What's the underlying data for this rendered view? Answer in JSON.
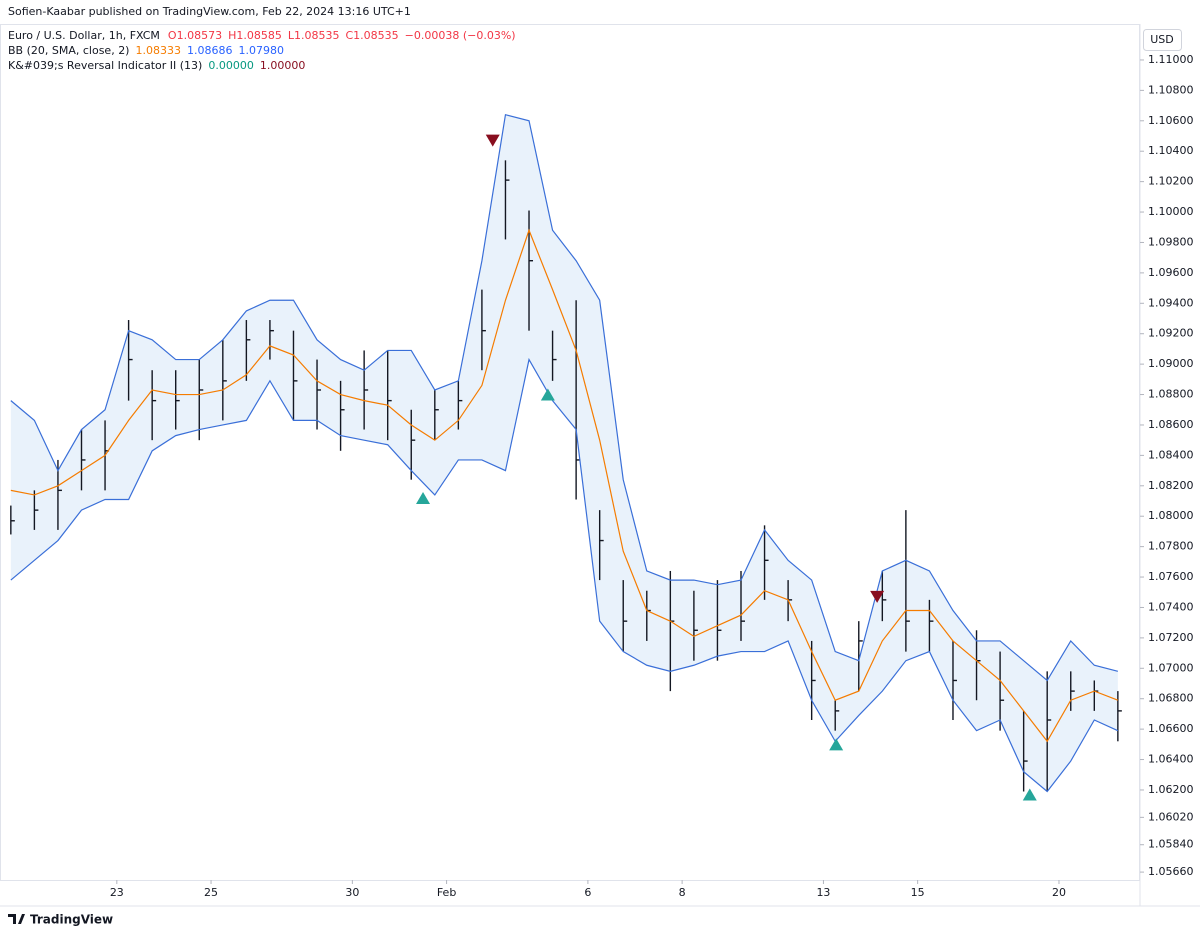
{
  "chart_data": {
    "type": "ohlc",
    "publisher": "Sofien-Kaabar published on TradingView.com, Feb 22, 2024 13:16 UTC+1",
    "symbol": "Euro / U.S. Dollar, 1h, FXCM",
    "quote": [
      "O1.08573",
      "H1.08585",
      "L1.08535",
      "C1.08535",
      "−0.00038 (−0.03%)"
    ],
    "quote_color": "#f23645",
    "indicators": [
      {
        "label": "BB (20, SMA, close, 2)",
        "values": [
          "1.08333",
          "1.08686",
          "1.07980"
        ],
        "colors": [
          "#f57c00",
          "#2962ff",
          "#2962ff"
        ]
      },
      {
        "label": "K&#039;s Reversal Indicator II (13)",
        "values": [
          "0.00000",
          "1.00000"
        ],
        "colors": [
          "#089981",
          "#880e1f"
        ]
      }
    ],
    "currency": "USD",
    "brand": "TradingView",
    "xlim": [
      -2.48,
      21.72
    ],
    "xticks": [
      {
        "value": 0,
        "label": "23"
      },
      {
        "value": 2,
        "label": "25"
      },
      {
        "value": 5,
        "label": "30"
      },
      {
        "value": 7,
        "label": "Feb"
      },
      {
        "value": 10,
        "label": "6"
      },
      {
        "value": 12,
        "label": "8"
      },
      {
        "value": 15,
        "label": "13"
      },
      {
        "value": 17,
        "label": "15"
      },
      {
        "value": 20,
        "label": "20"
      }
    ],
    "ylim": [
      1.05608,
      1.11197
    ],
    "yticks": [
      {
        "value": 1.0566,
        "label": "1.05660"
      },
      {
        "value": 1.0584,
        "label": "1.05840"
      },
      {
        "value": 1.0602,
        "label": "1.06020"
      },
      {
        "value": 1.062,
        "label": "1.06200"
      },
      {
        "value": 1.064,
        "label": "1.06400"
      },
      {
        "value": 1.066,
        "label": "1.06600"
      },
      {
        "value": 1.068,
        "label": "1.06800"
      },
      {
        "value": 1.07,
        "label": "1.07000"
      },
      {
        "value": 1.072,
        "label": "1.07200"
      },
      {
        "value": 1.074,
        "label": "1.07400"
      },
      {
        "value": 1.076,
        "label": "1.07600"
      },
      {
        "value": 1.078,
        "label": "1.07800"
      },
      {
        "value": 1.08,
        "label": "1.08000"
      },
      {
        "value": 1.082,
        "label": "1.08200"
      },
      {
        "value": 1.084,
        "label": "1.08400"
      },
      {
        "value": 1.086,
        "label": "1.08600"
      },
      {
        "value": 1.088,
        "label": "1.08800"
      },
      {
        "value": 1.09,
        "label": "1.09000"
      },
      {
        "value": 1.092,
        "label": "1.09200"
      },
      {
        "value": 1.094,
        "label": "1.09400"
      },
      {
        "value": 1.096,
        "label": "1.09600"
      },
      {
        "value": 1.098,
        "label": "1.09800"
      },
      {
        "value": 1.1,
        "label": "1.10000"
      },
      {
        "value": 1.102,
        "label": "1.10200"
      },
      {
        "value": 1.104,
        "label": "1.10400"
      },
      {
        "value": 1.106,
        "label": "1.10600"
      },
      {
        "value": 1.108,
        "label": "1.10800"
      },
      {
        "value": 1.11,
        "label": "1.11000"
      }
    ],
    "x": [
      -2.25,
      -1.75,
      -1.25,
      -0.75,
      -0.25,
      0.25,
      0.75,
      1.25,
      1.75,
      2.25,
      2.75,
      3.25,
      3.75,
      4.25,
      4.75,
      5.25,
      5.75,
      6.25,
      6.75,
      7.25,
      7.75,
      8.25,
      8.75,
      9.25,
      9.75,
      10.25,
      10.75,
      11.25,
      11.75,
      12.25,
      12.75,
      13.25,
      13.75,
      14.25,
      14.75,
      15.25,
      15.75,
      16.25,
      16.75,
      17.25,
      17.75,
      18.25,
      18.75,
      19.25,
      19.75,
      20.25,
      20.75,
      21.25
    ],
    "bars": {
      "color": "#131722",
      "high": [
        1.0807,
        1.0817,
        1.0837,
        1.0857,
        1.0863,
        1.0929,
        1.0896,
        1.0896,
        1.0903,
        1.0916,
        1.0929,
        1.0929,
        1.0922,
        1.0903,
        1.0889,
        1.0909,
        1.0909,
        1.087,
        1.0883,
        1.0889,
        1.0949,
        1.1034,
        1.1001,
        1.0922,
        1.0942,
        1.0804,
        1.0758,
        1.0751,
        1.0764,
        1.0751,
        1.0758,
        1.0764,
        1.0794,
        1.0758,
        1.0718,
        1.0679,
        1.0731,
        1.0764,
        1.0804,
        1.0745,
        1.0718,
        1.0725,
        1.0711,
        1.0672,
        1.0698,
        1.0698,
        1.0692,
        1.0685
      ],
      "low": [
        1.0788,
        1.0791,
        1.0791,
        1.0817,
        1.0817,
        1.0876,
        1.085,
        1.0857,
        1.085,
        1.0863,
        1.0889,
        1.0903,
        1.0863,
        1.0857,
        1.0843,
        1.0857,
        1.085,
        1.0824,
        1.085,
        1.0857,
        1.0896,
        1.0982,
        1.0922,
        1.0889,
        1.0811,
        1.0758,
        1.0711,
        1.0718,
        1.0685,
        1.0705,
        1.0705,
        1.0718,
        1.0745,
        1.0731,
        1.0666,
        1.0659,
        1.0685,
        1.0731,
        1.0711,
        1.0711,
        1.0666,
        1.0679,
        1.0659,
        1.0619,
        1.0619,
        1.0672,
        1.0672,
        1.0652
      ],
      "close": [
        1.0797,
        1.0804,
        1.0817,
        1.0837,
        1.0843,
        1.0903,
        1.0876,
        1.0876,
        1.0883,
        1.0889,
        1.0916,
        1.0922,
        1.0889,
        1.0883,
        1.087,
        1.0883,
        1.0876,
        1.085,
        1.087,
        1.0876,
        1.0922,
        1.1021,
        1.0968,
        1.0903,
        1.0837,
        1.0784,
        1.0731,
        1.0738,
        1.0731,
        1.0725,
        1.0725,
        1.0731,
        1.0771,
        1.0745,
        1.0692,
        1.0672,
        1.0718,
        1.0745,
        1.0731,
        1.0731,
        1.0692,
        1.0705,
        1.0679,
        1.0639,
        1.0666,
        1.0685,
        1.0685,
        1.0672
      ]
    },
    "band_fill": "#e9f2fb",
    "lines": [
      {
        "color": "#3a6fd8",
        "values": [
          1.0876,
          1.0863,
          1.083,
          1.0857,
          1.087,
          1.0922,
          1.0916,
          1.0903,
          1.0903,
          1.0916,
          1.0935,
          1.0942,
          1.0942,
          1.0916,
          1.0903,
          1.0896,
          1.0909,
          1.0909,
          1.0883,
          1.0889,
          1.0968,
          1.1064,
          1.106,
          1.0988,
          1.0968,
          1.0942,
          1.0824,
          1.0764,
          1.0758,
          1.0758,
          1.0755,
          1.0758,
          1.0791,
          1.0771,
          1.0758,
          1.0711,
          1.0705,
          1.0764,
          1.0771,
          1.0764,
          1.0738,
          1.0718,
          1.0718,
          1.0705,
          1.0692,
          1.0718,
          1.0702,
          1.0698
        ]
      },
      {
        "color": "#f57c00",
        "values": [
          1.0817,
          1.0814,
          1.082,
          1.083,
          1.084,
          1.0863,
          1.0883,
          1.088,
          1.088,
          1.0883,
          1.0893,
          1.0912,
          1.0906,
          1.0889,
          1.088,
          1.0876,
          1.0873,
          1.086,
          1.085,
          1.0863,
          1.0886,
          1.0942,
          1.0988,
          1.0949,
          1.0909,
          1.085,
          1.0777,
          1.0738,
          1.0731,
          1.0721,
          1.0728,
          1.0735,
          1.0751,
          1.0745,
          1.0711,
          1.0679,
          1.0685,
          1.0718,
          1.0738,
          1.0738,
          1.0718,
          1.0705,
          1.0692,
          1.0672,
          1.0652,
          1.0679,
          1.0685,
          1.0679
        ]
      },
      {
        "color": "#3a6fd8",
        "values": [
          1.0758,
          1.0771,
          1.0784,
          1.0804,
          1.0811,
          1.0811,
          1.0843,
          1.0853,
          1.0857,
          1.086,
          1.0863,
          1.0889,
          1.0863,
          1.0863,
          1.0853,
          1.085,
          1.0847,
          1.083,
          1.0814,
          1.0837,
          1.0837,
          1.083,
          1.0903,
          1.0876,
          1.0857,
          1.0731,
          1.0711,
          1.0702,
          1.0698,
          1.0702,
          1.0708,
          1.0711,
          1.0711,
          1.0718,
          1.0679,
          1.0652,
          1.0669,
          1.0685,
          1.0705,
          1.0711,
          1.0679,
          1.0659,
          1.0666,
          1.0632,
          1.0619,
          1.0639,
          1.0666,
          1.0659
        ]
      }
    ],
    "signals": [
      {
        "shape": "up",
        "color": "#26a69a",
        "x": [
          6.5,
          9.15,
          15.27,
          19.38
        ],
        "y": [
          1.0812,
          1.088,
          1.065,
          1.0617
        ]
      },
      {
        "shape": "down",
        "color": "#880e1f",
        "x": [
          7.98,
          16.14
        ],
        "y": [
          1.1047,
          1.0747
        ]
      }
    ]
  }
}
